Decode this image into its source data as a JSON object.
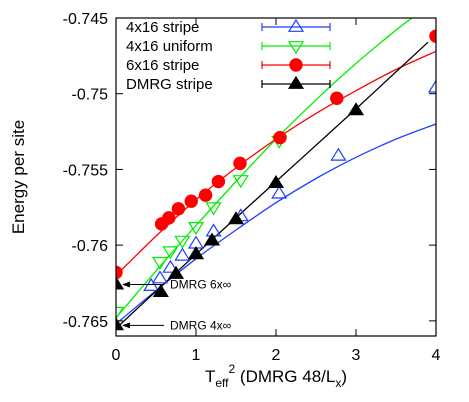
{
  "chart_data": {
    "type": "scatter",
    "title": "",
    "xlabel": {
      "base": "T",
      "sub": "eff",
      "sup": "2",
      "rest": " (DMRG 48/L",
      "rest_sub": "x",
      "close": ")"
    },
    "ylabel": "Energy per site",
    "xlim": [
      0,
      4
    ],
    "ylim": [
      -0.766,
      -0.745
    ],
    "xticks": [
      0,
      1,
      2,
      3,
      4
    ],
    "xtick_labels": [
      "0",
      "1",
      "2",
      "3",
      "4"
    ],
    "yticks": [
      -0.765,
      -0.76,
      -0.755,
      -0.75,
      -0.745
    ],
    "ytick_labels": [
      "-0.765",
      "-0.76",
      "-0.755",
      "-0.75",
      "-0.745"
    ],
    "grid": false,
    "legend_position": "top-left",
    "series": [
      {
        "name": "4x16 stripe",
        "color": "#1f3fff",
        "marker": "triangle-up-open",
        "points": [
          [
            0.44,
            -0.7627
          ],
          [
            0.55,
            -0.7622
          ],
          [
            0.68,
            -0.7615
          ],
          [
            0.83,
            -0.7607
          ],
          [
            1.0,
            -0.7599
          ],
          [
            1.22,
            -0.7591
          ],
          [
            1.56,
            -0.7581
          ],
          [
            2.04,
            -0.7566
          ],
          [
            2.78,
            -0.7541
          ],
          [
            4.0,
            -0.7496
          ]
        ],
        "fit": [
          [
            0.0,
            -0.7652
          ],
          [
            0.5,
            -0.763
          ],
          [
            1.0,
            -0.7609
          ],
          [
            1.5,
            -0.759
          ],
          [
            2.0,
            -0.7572
          ],
          [
            2.5,
            -0.7556
          ],
          [
            3.0,
            -0.7542
          ],
          [
            3.5,
            -0.753
          ],
          [
            4.0,
            -0.752
          ]
        ]
      },
      {
        "name": "4x16 uniform",
        "color": "#00ee00",
        "marker": "triangle-down-open",
        "points": [
          [
            0.0,
            -0.7644
          ],
          [
            0.55,
            -0.7611
          ],
          [
            0.68,
            -0.7604
          ],
          [
            0.83,
            -0.7597
          ],
          [
            1.0,
            -0.7588
          ],
          [
            1.22,
            -0.7575
          ],
          [
            1.56,
            -0.7557
          ],
          [
            2.04,
            -0.7531
          ]
        ],
        "fit": [
          [
            0.0,
            -0.7648
          ],
          [
            0.5,
            -0.7617
          ],
          [
            1.0,
            -0.7587
          ],
          [
            1.5,
            -0.7558
          ],
          [
            2.0,
            -0.753
          ],
          [
            2.5,
            -0.7504
          ],
          [
            3.0,
            -0.748
          ],
          [
            3.5,
            -0.7458
          ],
          [
            3.7,
            -0.745
          ]
        ]
      },
      {
        "name": "6x16 stripe",
        "color": "#ff0000",
        "marker": "circle-filled",
        "points": [
          [
            0.0,
            -0.7618
          ],
          [
            0.57,
            -0.7586
          ],
          [
            0.66,
            -0.7582
          ],
          [
            0.78,
            -0.7576
          ],
          [
            0.94,
            -0.7571
          ],
          [
            1.12,
            -0.7567
          ],
          [
            1.28,
            -0.7558
          ],
          [
            1.55,
            -0.7546
          ],
          [
            2.05,
            -0.7529
          ],
          [
            2.76,
            -0.7503
          ],
          [
            4.0,
            -0.7462
          ]
        ],
        "fit": [
          [
            0.0,
            -0.762
          ],
          [
            0.5,
            -0.7594
          ],
          [
            1.0,
            -0.757
          ],
          [
            1.5,
            -0.7549
          ],
          [
            2.0,
            -0.753
          ],
          [
            2.5,
            -0.7513
          ],
          [
            3.0,
            -0.7498
          ],
          [
            3.5,
            -0.7484
          ],
          [
            4.0,
            -0.7472
          ]
        ]
      },
      {
        "name": "DMRG stripe",
        "color": "#000000",
        "marker": "triangle-up-filled",
        "points": [
          [
            0.0,
            -0.7626
          ],
          [
            0.0,
            -0.7653
          ],
          [
            0.56,
            -0.7631
          ],
          [
            0.75,
            -0.7619
          ],
          [
            1.0,
            -0.7606
          ],
          [
            1.2,
            -0.7597
          ],
          [
            1.5,
            -0.7583
          ],
          [
            2.0,
            -0.7559
          ],
          [
            3.0,
            -0.7511
          ]
        ],
        "fit": [
          [
            0.0,
            -0.7655
          ],
          [
            1.0,
            -0.7606
          ],
          [
            2.0,
            -0.7558
          ],
          [
            3.0,
            -0.751
          ],
          [
            3.9,
            -0.7466
          ]
        ]
      }
    ],
    "annotations": [
      {
        "text": "DMRG 6x∞",
        "x": 0.0,
        "y": -0.7626,
        "text_x": 0.4,
        "text_y": -0.7626
      },
      {
        "text": "DMRG 4x∞",
        "x": 0.0,
        "y": -0.7653,
        "text_x": 0.4,
        "text_y": -0.7653
      }
    ]
  }
}
